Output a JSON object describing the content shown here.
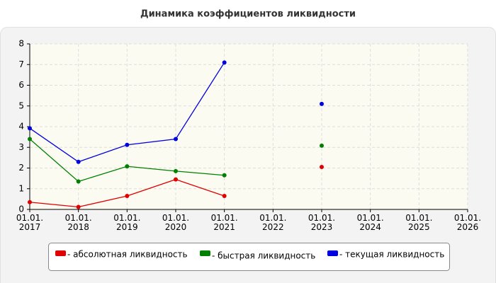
{
  "chart_data": {
    "type": "line",
    "title": "Динамика коэффициентов ликвидности",
    "categories": [
      "01.01. 2017",
      "01.01. 2018",
      "01.01. 2019",
      "01.01. 2020",
      "01.01. 2021",
      "01.01. 2022",
      "01.01. 2023",
      "01.01. 2024",
      "01.01. 2025",
      "01.01. 2026"
    ],
    "series": [
      {
        "name": "- абсолютная ликвидность",
        "color": "#e00000",
        "values": [
          0.35,
          0.12,
          0.65,
          1.45,
          0.65,
          null,
          2.05,
          null,
          null,
          null
        ]
      },
      {
        "name": "- быстрая ликвидность",
        "color": "#008000",
        "values": [
          3.4,
          1.35,
          2.08,
          1.85,
          1.65,
          null,
          3.08,
          null,
          null,
          null
        ]
      },
      {
        "name": "- текущая ликвидность",
        "color": "#0000e0",
        "values": [
          3.92,
          2.3,
          3.12,
          3.4,
          7.1,
          null,
          5.1,
          null,
          null,
          null
        ]
      }
    ],
    "ylim": [
      0,
      8
    ],
    "yticks": [
      0,
      1,
      2,
      3,
      4,
      5,
      6,
      7,
      8
    ],
    "grid": true
  }
}
